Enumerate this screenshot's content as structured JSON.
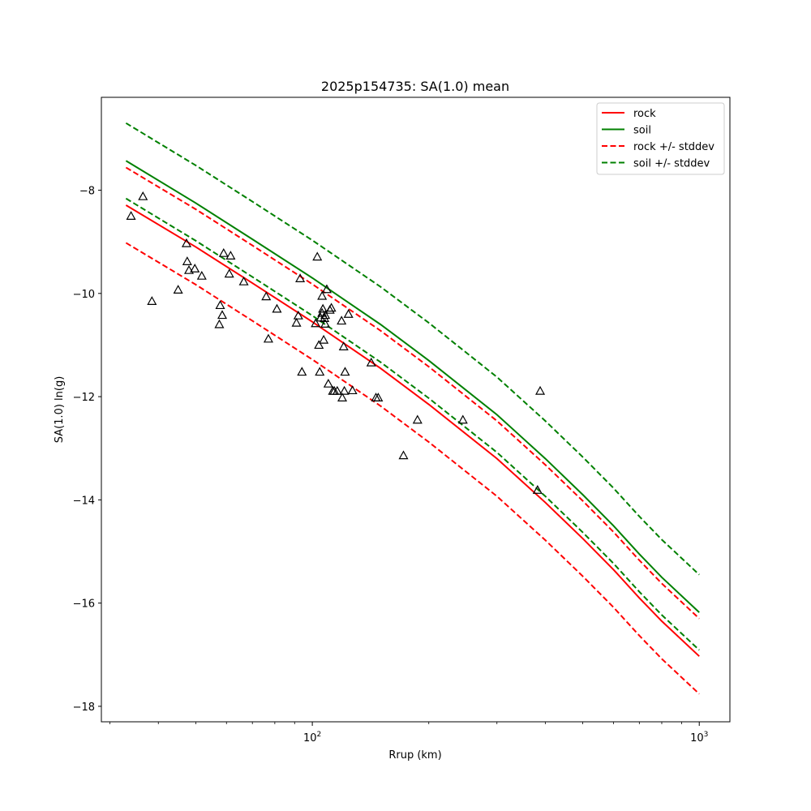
{
  "chart_data": {
    "type": "line",
    "title": "2025p154735: SA(1.0) mean",
    "xlabel": "Rrup (km)",
    "ylabel": "SA(1.0) ln(g)",
    "xscale": "log",
    "xlim": [
      28.5,
      1200
    ],
    "ylim": [
      -18.3,
      -6.2
    ],
    "x_ticks": [
      {
        "value": 100,
        "base": "10",
        "exp": "2"
      },
      {
        "value": 1000,
        "base": "10",
        "exp": "3"
      }
    ],
    "y_ticks": [
      {
        "value": -8,
        "label": "−8"
      },
      {
        "value": -10,
        "label": "−10"
      },
      {
        "value": -12,
        "label": "−12"
      },
      {
        "value": -14,
        "label": "−14"
      },
      {
        "value": -16,
        "label": "−16"
      },
      {
        "value": -18,
        "label": "−18"
      }
    ],
    "legend_position": "top-right",
    "series": [
      {
        "name": "rock",
        "color": "#ff0000",
        "style": "solid",
        "x": [
          33,
          50,
          70,
          100,
          150,
          200,
          300,
          400,
          500,
          600,
          700,
          800,
          1000
        ],
        "y": [
          -8.29,
          -9.1,
          -9.8,
          -10.55,
          -11.45,
          -12.15,
          -13.2,
          -14.05,
          -14.75,
          -15.35,
          -15.9,
          -16.35,
          -17.03
        ]
      },
      {
        "name": "soil",
        "color": "#008000",
        "style": "solid",
        "x": [
          33,
          50,
          70,
          100,
          150,
          200,
          300,
          400,
          500,
          600,
          700,
          800,
          1000
        ],
        "y": [
          -7.43,
          -8.25,
          -8.95,
          -9.7,
          -10.6,
          -11.3,
          -12.35,
          -13.2,
          -13.9,
          -14.5,
          -15.05,
          -15.5,
          -16.18
        ]
      },
      {
        "name": "rock +/- stddev",
        "color": "#ff0000",
        "style": "dashed",
        "x": [
          33,
          50,
          70,
          100,
          150,
          200,
          300,
          400,
          500,
          600,
          700,
          800,
          1000
        ],
        "y": [
          -7.56,
          -8.37,
          -9.07,
          -9.82,
          -10.72,
          -11.42,
          -12.47,
          -13.32,
          -14.02,
          -14.62,
          -15.17,
          -15.62,
          -16.3
        ]
      },
      {
        "color": "#ff0000",
        "style": "dashed",
        "x": [
          33,
          50,
          70,
          100,
          150,
          200,
          300,
          400,
          500,
          600,
          700,
          800,
          1000
        ],
        "y": [
          -9.02,
          -9.83,
          -10.53,
          -11.28,
          -12.18,
          -12.88,
          -13.93,
          -14.78,
          -15.48,
          -16.08,
          -16.63,
          -17.08,
          -17.76
        ]
      },
      {
        "name": "soil +/- stddev",
        "color": "#008000",
        "style": "dashed",
        "x": [
          33,
          50,
          70,
          100,
          150,
          200,
          300,
          400,
          500,
          600,
          700,
          800,
          1000
        ],
        "y": [
          -6.7,
          -7.52,
          -8.22,
          -8.97,
          -9.87,
          -10.57,
          -11.62,
          -12.47,
          -13.17,
          -13.77,
          -14.32,
          -14.77,
          -15.45
        ]
      },
      {
        "color": "#008000",
        "style": "dashed",
        "x": [
          33,
          50,
          70,
          100,
          150,
          200,
          300,
          400,
          500,
          600,
          700,
          800,
          1000
        ],
        "y": [
          -8.16,
          -8.98,
          -9.68,
          -10.43,
          -11.33,
          -12.03,
          -13.08,
          -13.93,
          -14.63,
          -15.23,
          -15.78,
          -16.23,
          -16.91
        ]
      }
    ],
    "observations": {
      "marker": "triangle",
      "color": "#000000",
      "x": [
        34,
        36.5,
        38.5,
        45,
        47.3,
        47.5,
        48,
        49.7,
        51.8,
        57.5,
        57.8,
        58.5,
        59,
        61,
        61.5,
        66.5,
        76,
        77,
        81,
        91,
        92,
        93,
        94,
        102,
        103,
        104,
        104.5,
        105,
        106,
        106,
        106.5,
        107,
        107.5,
        108,
        108,
        109,
        110,
        111,
        112,
        113,
        114,
        116,
        119,
        119.5,
        120.5,
        121,
        121.5,
        124,
        127,
        142,
        146,
        148,
        172,
        187,
        245,
        382,
        388
      ],
      "y": [
        -8.5,
        -8.12,
        -10.15,
        -9.93,
        -9.03,
        -9.38,
        -9.55,
        -9.52,
        -9.66,
        -10.6,
        -10.23,
        -10.42,
        -9.22,
        -9.62,
        -9.27,
        -9.77,
        -10.06,
        -10.88,
        -10.3,
        -10.57,
        -10.43,
        -9.71,
        -11.52,
        -10.58,
        -9.29,
        -11.0,
        -11.52,
        -10.47,
        -10.38,
        -10.05,
        -10.3,
        -10.9,
        -10.48,
        -10.59,
        -10.42,
        -9.92,
        -11.75,
        -10.32,
        -10.28,
        -11.89,
        -11.89,
        -11.89,
        -10.53,
        -12.02,
        -11.03,
        -11.89,
        -11.52,
        -10.4,
        -11.88,
        -11.34,
        -12.02,
        -12.02,
        -13.14,
        -12.45,
        -12.45,
        -13.81,
        -11.89
      ]
    }
  }
}
